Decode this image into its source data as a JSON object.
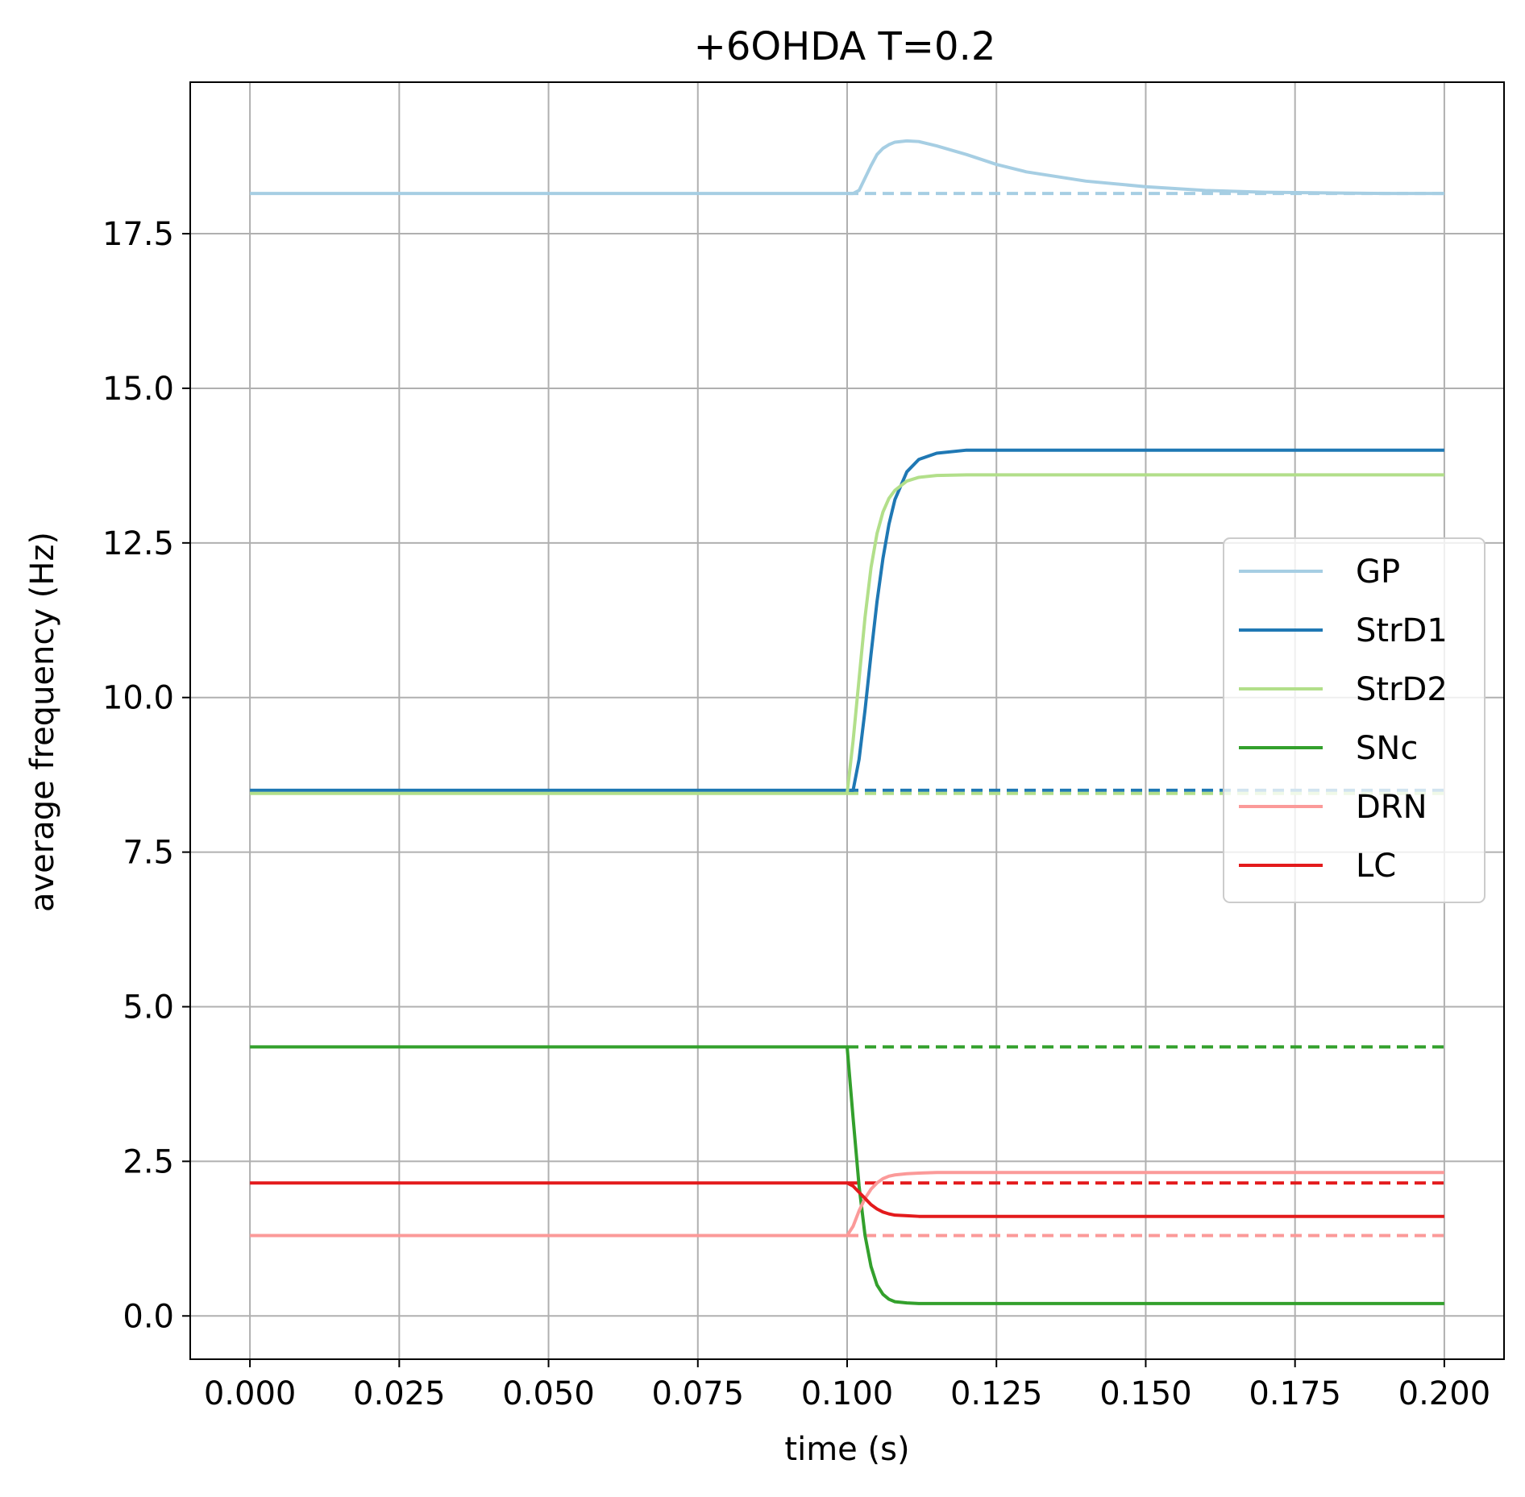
{
  "chart_data": {
    "type": "line",
    "title": "+6OHDA T=0.2",
    "xlabel": "time (s)",
    "ylabel": "average frequency (Hz)",
    "xlim": [
      -0.01,
      0.21
    ],
    "ylim": [
      -0.7,
      19.95
    ],
    "xticks": [
      0.0,
      0.025,
      0.05,
      0.075,
      0.1,
      0.125,
      0.15,
      0.175,
      0.2
    ],
    "xtick_labels": [
      "0.000",
      "0.025",
      "0.050",
      "0.075",
      "0.100",
      "0.125",
      "0.150",
      "0.175",
      "0.200"
    ],
    "yticks": [
      0.0,
      2.5,
      5.0,
      7.5,
      10.0,
      12.5,
      15.0,
      17.5
    ],
    "ytick_labels": [
      "0.0",
      "2.5",
      "5.0",
      "7.5",
      "10.0",
      "12.5",
      "15.0",
      "17.5"
    ],
    "grid": true,
    "legend_position": "right",
    "x": [
      0.0,
      0.1,
      0.101,
      0.102,
      0.103,
      0.104,
      0.105,
      0.106,
      0.107,
      0.108,
      0.11,
      0.112,
      0.115,
      0.12,
      0.125,
      0.13,
      0.14,
      0.15,
      0.16,
      0.17,
      0.18,
      0.19,
      0.2
    ],
    "series": [
      {
        "name": "GP",
        "color": "#a6cee3",
        "values": [
          18.15,
          18.15,
          18.15,
          18.2,
          18.4,
          18.6,
          18.78,
          18.88,
          18.94,
          18.98,
          19.0,
          18.99,
          18.92,
          18.78,
          18.62,
          18.5,
          18.35,
          18.26,
          18.2,
          18.17,
          18.16,
          18.15,
          18.15
        ],
        "baseline": 18.15
      },
      {
        "name": "StrD1",
        "color": "#1f78b4",
        "values": [
          8.5,
          8.5,
          8.5,
          9.0,
          9.8,
          10.7,
          11.55,
          12.25,
          12.8,
          13.2,
          13.65,
          13.85,
          13.95,
          14.0,
          14.0,
          14.0,
          14.0,
          14.0,
          14.0,
          14.0,
          14.0,
          14.0,
          14.0
        ],
        "baseline": 8.5
      },
      {
        "name": "StrD2",
        "color": "#b2df8a",
        "values": [
          8.45,
          8.45,
          9.3,
          10.3,
          11.3,
          12.1,
          12.65,
          13.0,
          13.22,
          13.35,
          13.5,
          13.56,
          13.59,
          13.6,
          13.6,
          13.6,
          13.6,
          13.6,
          13.6,
          13.6,
          13.6,
          13.6,
          13.6
        ],
        "baseline": 8.45
      },
      {
        "name": "SNc",
        "color": "#33a02c",
        "values": [
          4.35,
          4.35,
          3.2,
          2.1,
          1.3,
          0.8,
          0.5,
          0.35,
          0.27,
          0.23,
          0.21,
          0.2,
          0.2,
          0.2,
          0.2,
          0.2,
          0.2,
          0.2,
          0.2,
          0.2,
          0.2,
          0.2,
          0.2
        ],
        "baseline": 4.35
      },
      {
        "name": "DRN",
        "color": "#fb9a99",
        "values": [
          1.3,
          1.3,
          1.45,
          1.7,
          1.9,
          2.05,
          2.15,
          2.22,
          2.26,
          2.28,
          2.3,
          2.31,
          2.32,
          2.32,
          2.32,
          2.32,
          2.32,
          2.32,
          2.32,
          2.32,
          2.32,
          2.32,
          2.32
        ],
        "baseline": 1.3
      },
      {
        "name": "LC",
        "color": "#e31a1c",
        "values": [
          2.15,
          2.15,
          2.1,
          2.0,
          1.9,
          1.8,
          1.73,
          1.68,
          1.65,
          1.63,
          1.62,
          1.61,
          1.61,
          1.61,
          1.61,
          1.61,
          1.61,
          1.61,
          1.61,
          1.61,
          1.61,
          1.61,
          1.61
        ],
        "baseline": 2.15
      }
    ],
    "baseline_style": "dashed",
    "baseline_from": 0.1
  }
}
